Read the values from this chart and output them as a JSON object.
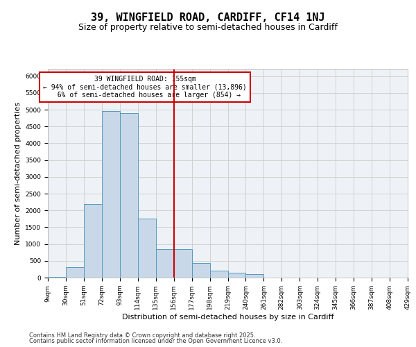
{
  "title_line1": "39, WINGFIELD ROAD, CARDIFF, CF14 1NJ",
  "title_line2": "Size of property relative to semi-detached houses in Cardiff",
  "xlabel": "Distribution of semi-detached houses by size in Cardiff",
  "ylabel": "Number of semi-detached properties",
  "property_label": "39 WINGFIELD ROAD: 155sqm",
  "pct_smaller": 94,
  "count_smaller": 13896,
  "pct_larger": 6,
  "count_larger": 854,
  "bin_labels": [
    "9sqm",
    "30sqm",
    "51sqm",
    "72sqm",
    "93sqm",
    "114sqm",
    "135sqm",
    "156sqm",
    "177sqm",
    "198sqm",
    "219sqm",
    "240sqm",
    "261sqm",
    "282sqm",
    "303sqm",
    "324sqm",
    "345sqm",
    "366sqm",
    "387sqm",
    "408sqm",
    "429sqm"
  ],
  "bin_edges": [
    9,
    30,
    51,
    72,
    93,
    114,
    135,
    156,
    177,
    198,
    219,
    240,
    261,
    282,
    303,
    324,
    345,
    366,
    387,
    408,
    429
  ],
  "bar_heights": [
    30,
    300,
    2200,
    4950,
    4900,
    1750,
    850,
    850,
    430,
    200,
    150,
    100,
    0,
    0,
    0,
    0,
    0,
    0,
    0,
    0
  ],
  "bar_color": "#c8d8e8",
  "bar_edge_color": "#5599bb",
  "vline_color": "#cc0000",
  "vline_x": 156,
  "ylim": [
    0,
    6200
  ],
  "yticks": [
    0,
    500,
    1000,
    1500,
    2000,
    2500,
    3000,
    3500,
    4000,
    4500,
    5000,
    5500,
    6000
  ],
  "grid_color": "#cccccc",
  "bg_color": "#eef2f6",
  "footer_line1": "Contains HM Land Registry data © Crown copyright and database right 2025.",
  "footer_line2": "Contains public sector information licensed under the Open Government Licence v3.0.",
  "annotation_box_color": "#cc0000",
  "title_fontsize": 11,
  "subtitle_fontsize": 9,
  "axis_label_fontsize": 8,
  "tick_fontsize": 6.5,
  "annotation_fontsize": 7,
  "footer_fontsize": 6
}
